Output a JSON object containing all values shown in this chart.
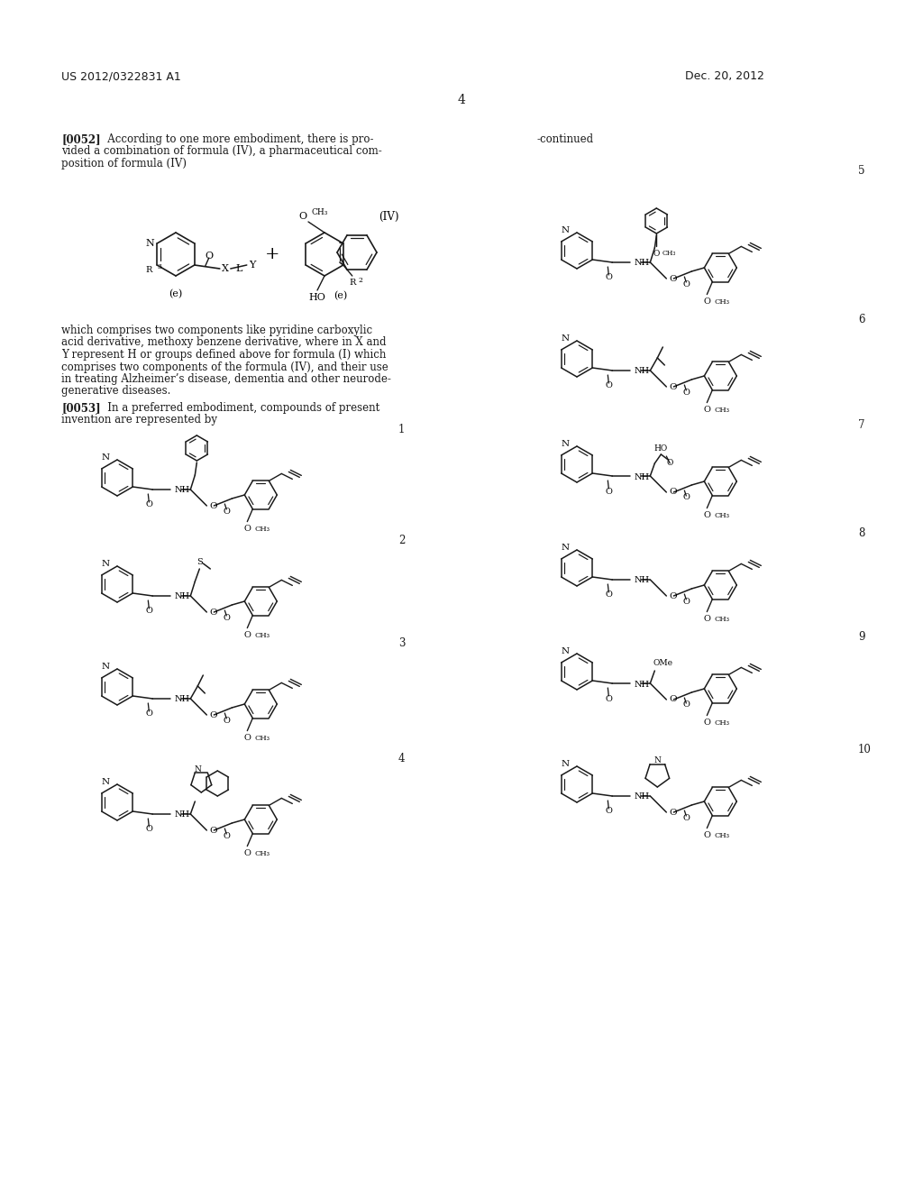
{
  "bg": "#ffffff",
  "header_left": "US 2012/0322831 A1",
  "header_right": "Dec. 20, 2012",
  "page_num": "4",
  "continued": "-continued",
  "para052_bold": "[0052]",
  "para052_text": "   According to one more embodiment, there is pro-\nvided a combination of formula (IV), a pharmaceutical com-\nposition of formula (IV)",
  "para_body": "which comprises two components like pyridine carboxylic\nacid derivative, methoxy benzene derivative, where in X and\nY represent H or groups defined above for formula (I) which\ncomprises two components of the formula (IV), and their use\nin treating Alzheimer’s disease, dementia and other neurode-\ngenerative diseases.",
  "para053_bold": "[0053]",
  "para053_text": "   In a preferred embodiment, compounds of present\ninvention are represented by",
  "formula_label": "(IV)",
  "comp_labels_left": [
    "1",
    "2",
    "3",
    "4"
  ],
  "comp_labels_right": [
    "5",
    "6",
    "7",
    "8",
    "9",
    "10"
  ]
}
